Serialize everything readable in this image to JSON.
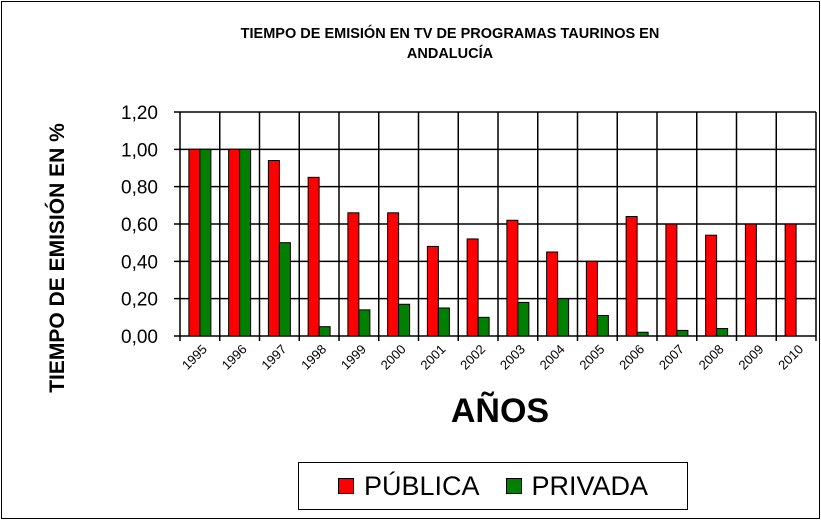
{
  "chart_data": {
    "type": "bar",
    "title": "TIEMPO DE EMISIÓN EN TV DE PROGRAMAS TAURINOS EN ANDALUCÍA",
    "title_lines": [
      "TIEMPO DE EMISIÓN EN TV DE PROGRAMAS TAURINOS EN",
      "ANDALUCÍA"
    ],
    "xlabel": "AÑOS",
    "ylabel": "TIEMPO DE EMISIÓN EN %",
    "ylim": [
      0,
      1.2
    ],
    "yticks": [
      "0,00",
      "0,20",
      "0,40",
      "0,60",
      "0,80",
      "1,00",
      "1,20"
    ],
    "grid": true,
    "legend_position": "bottom",
    "categories": [
      "1995",
      "1996",
      "1997",
      "1998",
      "1999",
      "2000",
      "2001",
      "2002",
      "2003",
      "2004",
      "2005",
      "2006",
      "2007",
      "2008",
      "2009",
      "2010"
    ],
    "series": [
      {
        "name": "PÚBLICA",
        "color": "#ff0000",
        "values": [
          1.0,
          1.0,
          0.94,
          0.85,
          0.66,
          0.66,
          0.48,
          0.52,
          0.62,
          0.45,
          0.4,
          0.64,
          0.6,
          0.54,
          0.6,
          0.6
        ]
      },
      {
        "name": "PRIVADA",
        "color": "#008000",
        "values": [
          1.0,
          1.0,
          0.5,
          0.05,
          0.14,
          0.17,
          0.15,
          0.1,
          0.18,
          0.2,
          0.11,
          0.02,
          0.03,
          0.04,
          0.0,
          0.0
        ]
      }
    ]
  }
}
